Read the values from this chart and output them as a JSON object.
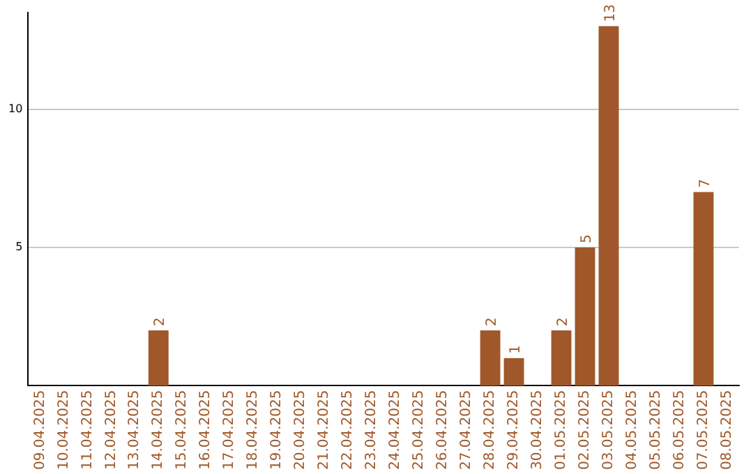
{
  "chart_data": {
    "type": "bar",
    "categories": [
      "09.04.2025",
      "10.04.2025",
      "11.04.2025",
      "12.04.2025",
      "13.04.2025",
      "14.04.2025",
      "15.04.2025",
      "16.04.2025",
      "17.04.2025",
      "18.04.2025",
      "19.04.2025",
      "20.04.2025",
      "21.04.2025",
      "22.04.2025",
      "23.04.2025",
      "24.04.2025",
      "25.04.2025",
      "26.04.2025",
      "27.04.2025",
      "28.04.2025",
      "29.04.2025",
      "30.04.2025",
      "01.05.2025",
      "02.05.2025",
      "03.05.2025",
      "04.05.2025",
      "05.05.2025",
      "06.05.2025",
      "07.05.2025",
      "08.05.2025"
    ],
    "values": [
      null,
      null,
      null,
      null,
      null,
      2,
      null,
      null,
      null,
      null,
      null,
      null,
      null,
      null,
      null,
      null,
      null,
      null,
      null,
      2,
      1,
      null,
      2,
      5,
      13,
      null,
      null,
      null,
      7,
      null
    ],
    "color": "#a0582a",
    "ylim": [
      0,
      13.5
    ],
    "yticks": [
      5,
      10
    ],
    "grid": "y",
    "data_labels": true,
    "legend": false
  }
}
